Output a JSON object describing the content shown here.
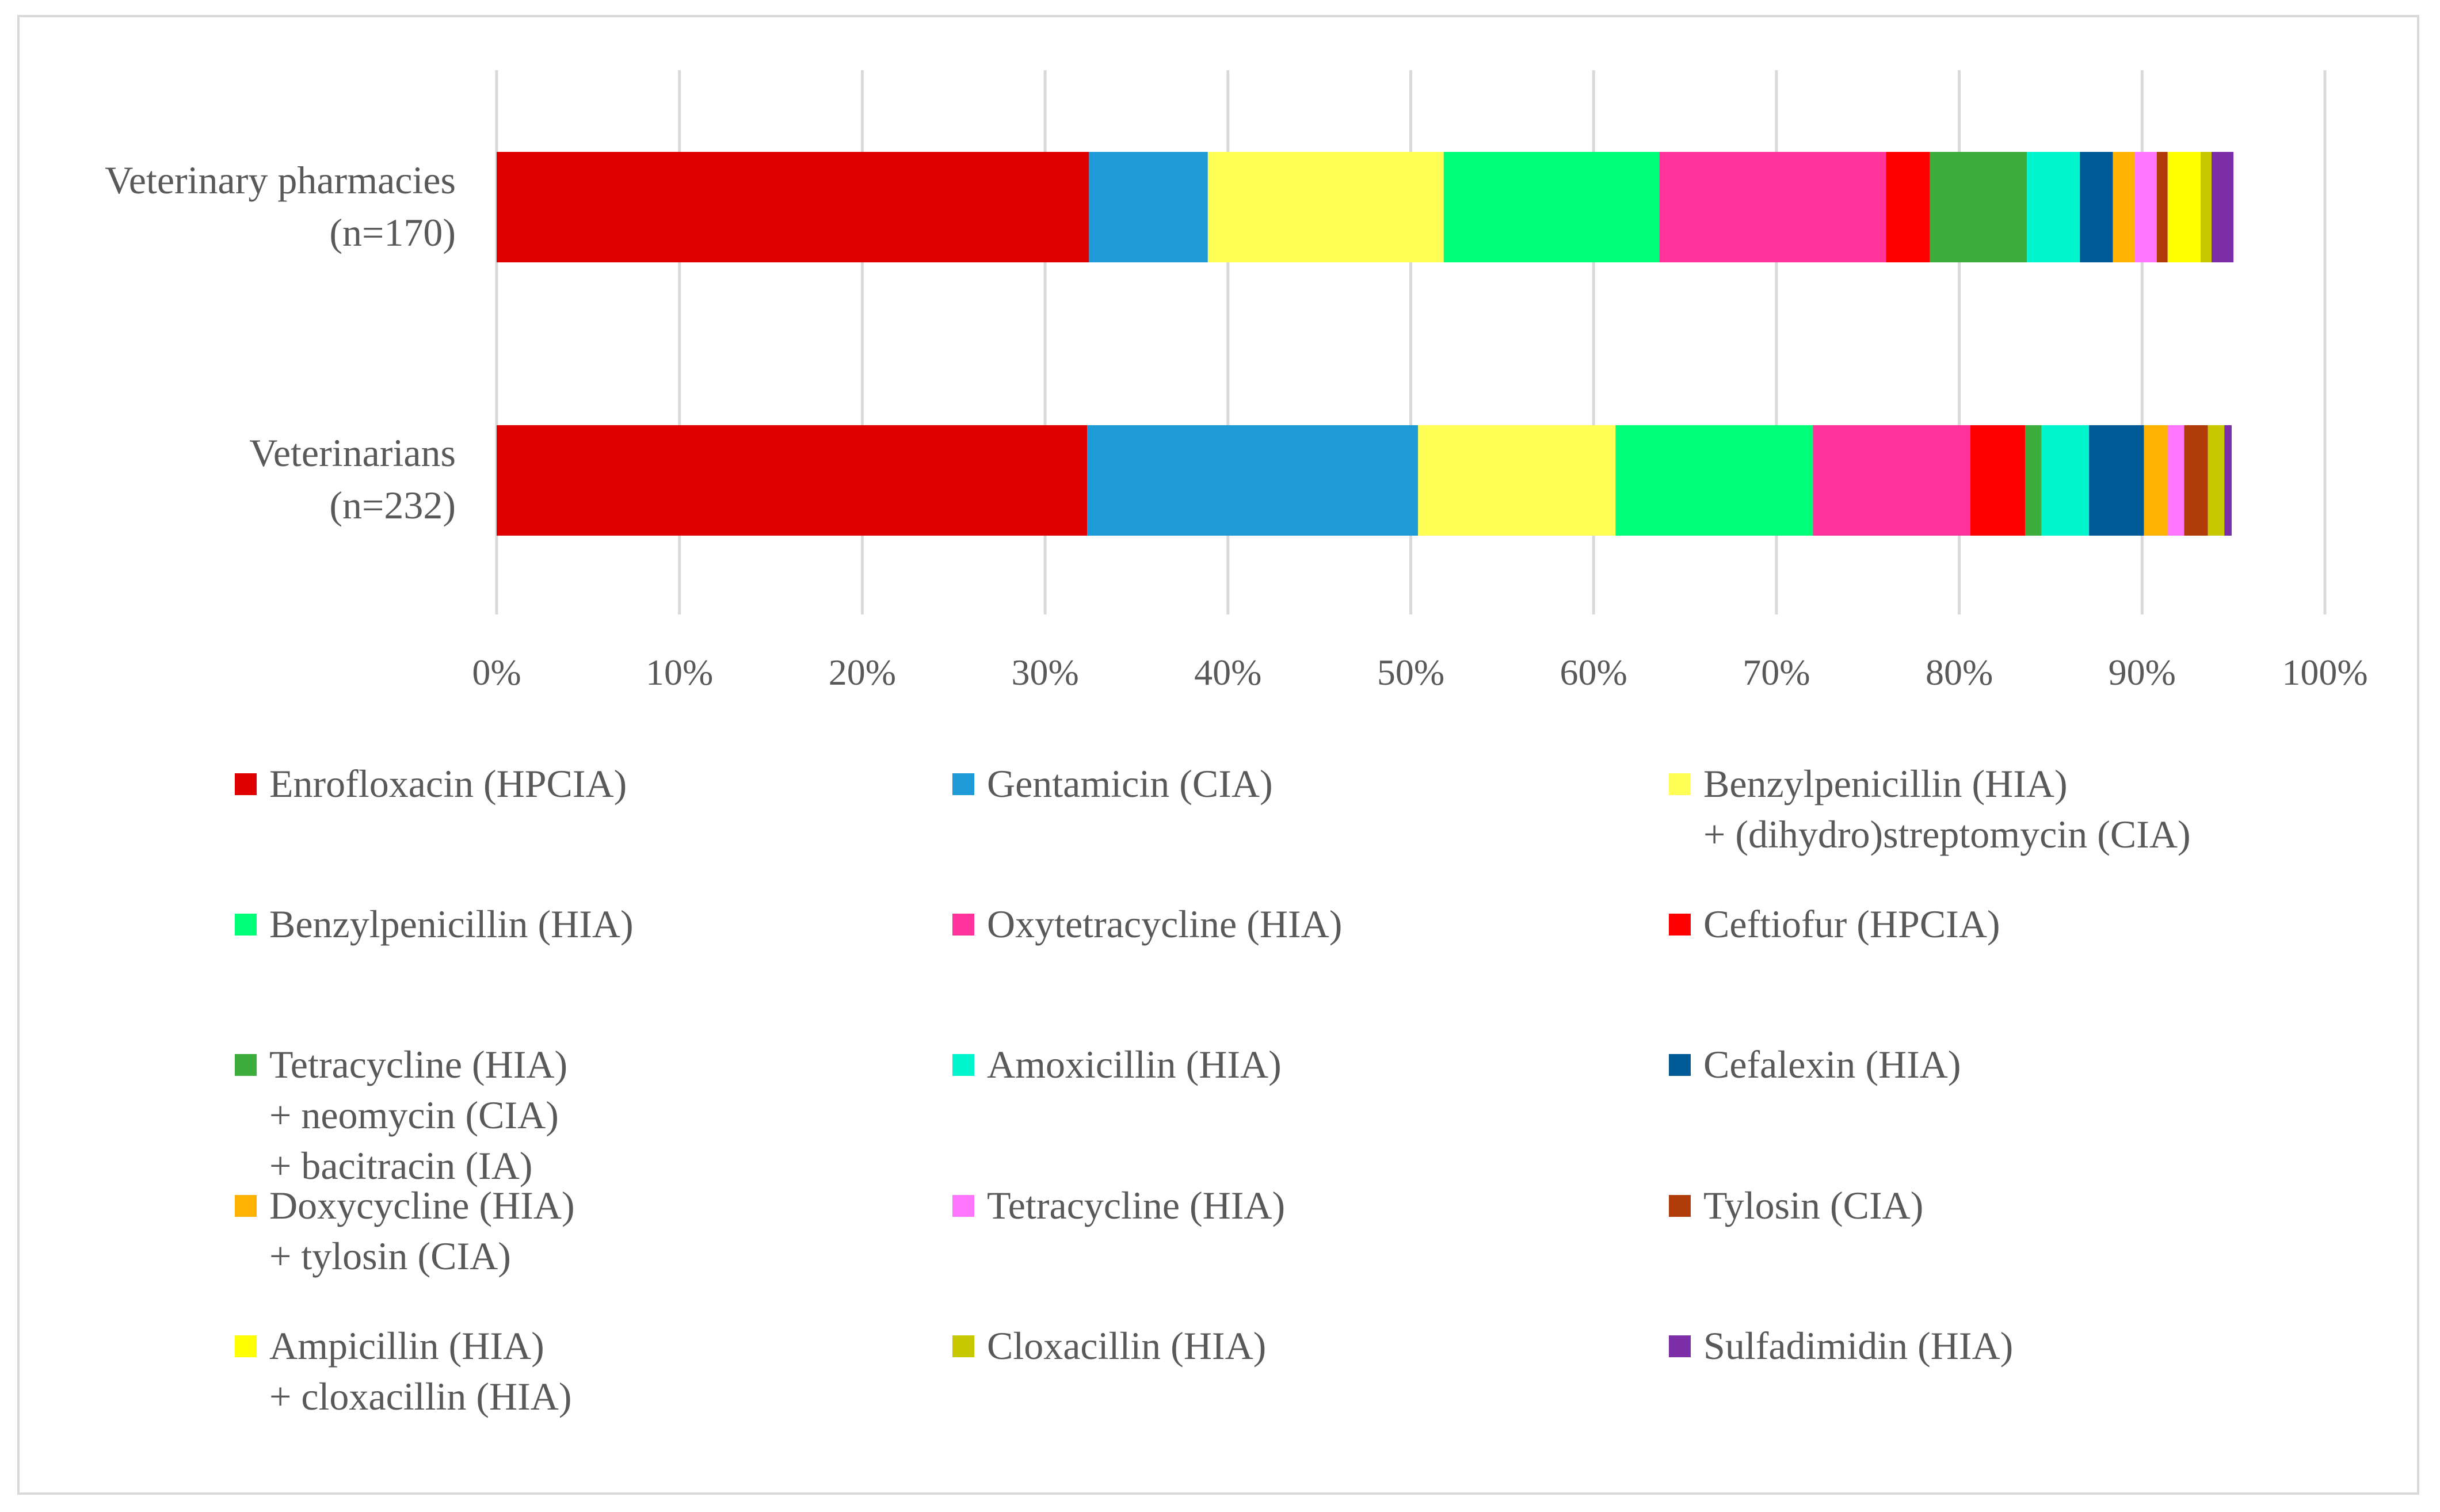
{
  "chart_data": {
    "type": "bar",
    "orientation": "horizontal",
    "stacked": true,
    "title": "",
    "xlabel": "",
    "ylabel": "",
    "xlim": [
      0,
      100
    ],
    "grid": true,
    "legend_position": "bottom",
    "x_ticks": [
      "0%",
      "10%",
      "20%",
      "30%",
      "40%",
      "50%",
      "60%",
      "70%",
      "80%",
      "90%",
      "100%"
    ],
    "categories": [
      {
        "line1": "Veterinary pharmacies",
        "line2": "(n=170)"
      },
      {
        "line1": "Veterinarians",
        "line2": "(n=232)"
      }
    ],
    "series": [
      {
        "name": "Enrofloxacin (HPCIA)",
        "color": "#e00000",
        "values": [
          32.4,
          32.3
        ]
      },
      {
        "name": "Gentamicin (CIA)",
        "color": "#1e9bd7",
        "values": [
          6.5,
          18.1
        ]
      },
      {
        "name": "Benzylpenicillin (HIA)\n+ (dihydro)streptomycin (CIA)",
        "color": "#ffff55",
        "values": [
          12.9,
          10.8
        ]
      },
      {
        "name": "Benzylpenicillin (HIA)",
        "color": "#00ff78",
        "values": [
          11.8,
          10.8
        ]
      },
      {
        "name": "Oxytetracycline (HIA)",
        "color": "#ff3399",
        "values": [
          12.4,
          8.6
        ]
      },
      {
        "name": "Ceftiofur (HPCIA)",
        "color": "#ff0000",
        "values": [
          2.4,
          3.0
        ]
      },
      {
        "name": "Tetracycline (HIA)\n+ neomycin (CIA)\n+ bacitracin (IA)",
        "color": "#3dae3d",
        "values": [
          5.3,
          0.9
        ]
      },
      {
        "name": "Amoxicillin (HIA)",
        "color": "#00f5cc",
        "values": [
          2.9,
          2.6
        ]
      },
      {
        "name": "Cefalexin (HIA)",
        "color": "#005a96",
        "values": [
          1.8,
          3.0
        ]
      },
      {
        "name": "Doxycycline (HIA)\n+ tylosin (CIA)",
        "color": "#ffb300",
        "values": [
          1.2,
          1.3
        ]
      },
      {
        "name": "Tetracycline (HIA)",
        "color": "#ff77ff",
        "values": [
          1.2,
          0.9
        ]
      },
      {
        "name": "Tylosin (CIA)",
        "color": "#b03c0a",
        "values": [
          0.6,
          1.3
        ]
      },
      {
        "name": "Ampicillin (HIA)\n+ cloxacillin (HIA)",
        "color": "#ffff00",
        "values": [
          1.8,
          0.0
        ]
      },
      {
        "name": "Cloxacillin (HIA)",
        "color": "#c8c800",
        "values": [
          0.6,
          0.9
        ]
      },
      {
        "name": "Sulfadimidin (HIA)",
        "color": "#7b2ea8",
        "values": [
          1.2,
          0.4
        ]
      }
    ]
  }
}
